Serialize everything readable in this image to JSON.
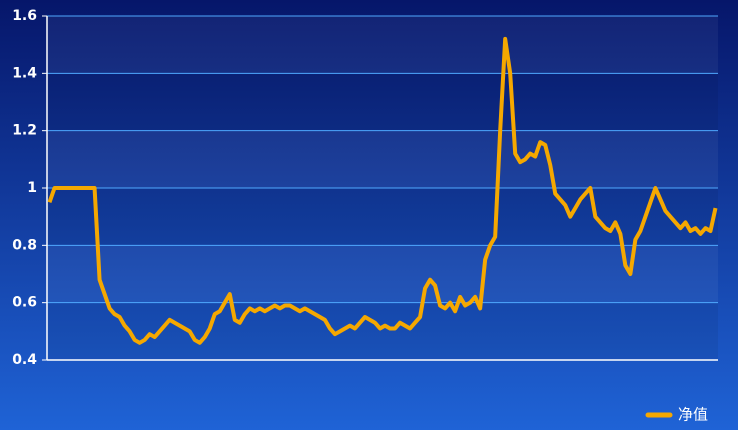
{
  "chart_data": {
    "type": "line",
    "categories": [
      null,
      null,
      null,
      null,
      null,
      null,
      null,
      null,
      null,
      null,
      null,
      null,
      null,
      null,
      null,
      null,
      null,
      null,
      null,
      null,
      null,
      null,
      null,
      null,
      null,
      null,
      null,
      null,
      null,
      null,
      null,
      null,
      null,
      null,
      null,
      null,
      null,
      null,
      null,
      null,
      null,
      null,
      null,
      null,
      null,
      null,
      null,
      null,
      null,
      null,
      null,
      null,
      null,
      null,
      null,
      null,
      null,
      null,
      null,
      null,
      null,
      null,
      null,
      null,
      null,
      null,
      null,
      null,
      null,
      null,
      null,
      null,
      null,
      null,
      null,
      null,
      null,
      null,
      null,
      null,
      null,
      null,
      null,
      null,
      null,
      null,
      null,
      null,
      null,
      null,
      null,
      null,
      null,
      null,
      null,
      null,
      null,
      null,
      null,
      null,
      null,
      null,
      null,
      null,
      null,
      null,
      null,
      null,
      null,
      null,
      null,
      null,
      null,
      null,
      null,
      null,
      null,
      null,
      null,
      null,
      null,
      null,
      null,
      null,
      null,
      null,
      null,
      null,
      null,
      null,
      null,
      null,
      null,
      null
    ],
    "series": [
      {
        "name": "净值",
        "color": "#f5a800",
        "values": [
          0.95,
          1,
          1,
          1,
          1,
          1,
          1,
          1,
          1,
          1,
          0.68,
          0.63,
          0.58,
          0.56,
          0.55,
          0.52,
          0.5,
          0.47,
          0.46,
          0.47,
          0.49,
          0.48,
          0.5,
          0.52,
          0.54,
          0.53,
          0.52,
          0.51,
          0.5,
          0.47,
          0.46,
          0.48,
          0.51,
          0.56,
          0.57,
          0.6,
          0.63,
          0.54,
          0.53,
          0.56,
          0.58,
          0.57,
          0.58,
          0.57,
          0.58,
          0.59,
          0.58,
          0.59,
          0.59,
          0.58,
          0.57,
          0.58,
          0.57,
          0.56,
          0.55,
          0.54,
          0.51,
          0.49,
          0.5,
          0.51,
          0.52,
          0.51,
          0.53,
          0.55,
          0.54,
          0.53,
          0.51,
          0.52,
          0.51,
          0.51,
          0.53,
          0.52,
          0.51,
          0.53,
          0.55,
          0.65,
          0.68,
          0.66,
          0.59,
          0.58,
          0.6,
          0.57,
          0.62,
          0.59,
          0.6,
          0.62,
          0.58,
          0.75,
          0.8,
          0.83,
          1.2,
          1.52,
          1.4,
          1.12,
          1.09,
          1.1,
          1.12,
          1.11,
          1.16,
          1.15,
          1.08,
          0.98,
          0.96,
          0.94,
          0.9,
          0.93,
          0.96,
          0.98,
          1,
          0.9,
          0.88,
          0.86,
          0.85,
          0.88,
          0.84,
          0.73,
          0.7,
          0.82,
          0.85,
          0.9,
          0.95,
          1,
          0.96,
          0.92,
          0.9,
          0.88,
          0.86,
          0.88,
          0.85,
          0.86,
          0.84,
          0.86,
          0.85,
          0.93
        ]
      }
    ],
    "ylim": [
      0.4,
      1.6
    ],
    "yticks": [
      0.4,
      0.6,
      0.8,
      1,
      1.2,
      1.4,
      1.6
    ],
    "grid": true,
    "legend": "bottom-right"
  }
}
